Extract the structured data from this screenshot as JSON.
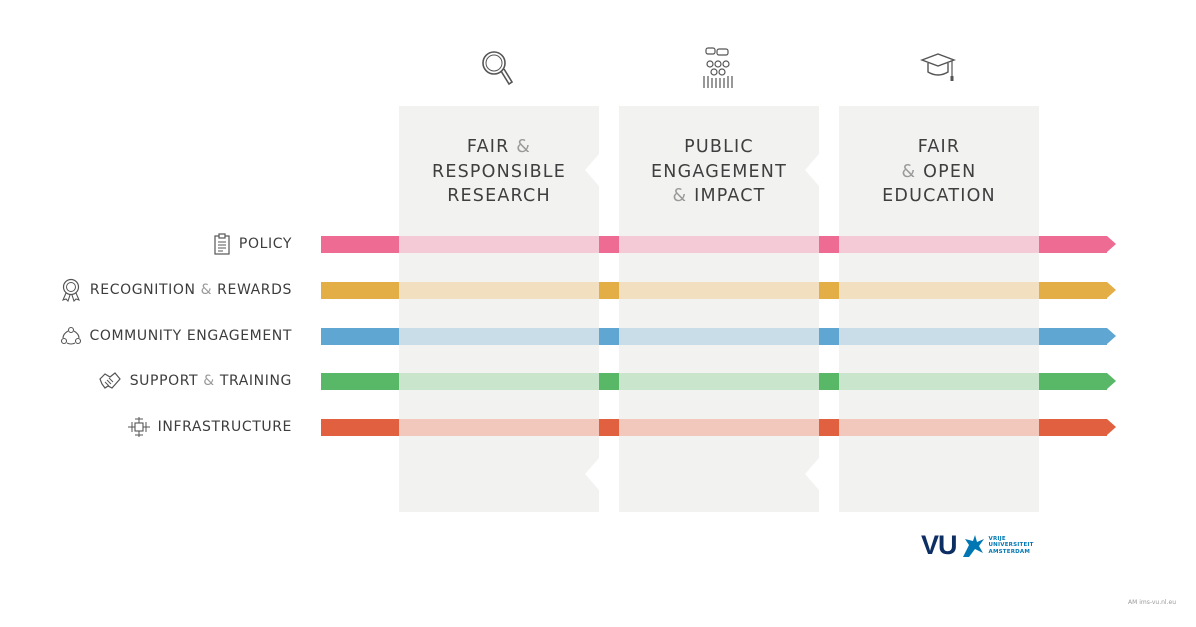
{
  "columns": [
    {
      "icon": "magnifier-icon",
      "line1": "FAIR",
      "amp1": "&",
      "line2": "RESPONSIBLE",
      "line3": "RESEARCH",
      "line3_prefix": ""
    },
    {
      "icon": "audience-icon",
      "line1": "PUBLIC",
      "amp1": "",
      "line2": "ENGAGEMENT",
      "line3": "IMPACT",
      "line3_prefix": "&"
    },
    {
      "icon": "graduation-cap-icon",
      "line1": "FAIR",
      "amp1": "",
      "line2": "OPEN",
      "line2_prefix": "&",
      "line3": "EDUCATION",
      "line3_prefix": ""
    }
  ],
  "rows": [
    {
      "label": "POLICY",
      "icon": "clipboard-icon",
      "color": "#ee6b94",
      "light": "#f5cad7"
    },
    {
      "label_a": "RECOGNITION",
      "amp": "&",
      "label_b": "REWARDS",
      "icon": "award-ribbon-icon",
      "color": "#e3ae46",
      "light": "#f1dfbf"
    },
    {
      "label": "COMMUNITY ENGAGEMENT",
      "icon": "community-cycle-icon",
      "color": "#5fa6d3",
      "light": "#c9dde9"
    },
    {
      "label_a": "SUPPORT",
      "amp": "&",
      "label_b": "TRAINING",
      "icon": "handshake-icon",
      "color": "#59b768",
      "light": "#c9e5cb"
    },
    {
      "label": "INFRASTRUCTURE",
      "icon": "network-icon",
      "color": "#e06040",
      "light": "#f2c8bd"
    }
  ],
  "logo": {
    "mark": "VU",
    "text_lines": [
      "VRIJE",
      "UNIVERSITEIT",
      "AMSTERDAM"
    ]
  },
  "credit": "AM  ims-vu.nl.eu"
}
